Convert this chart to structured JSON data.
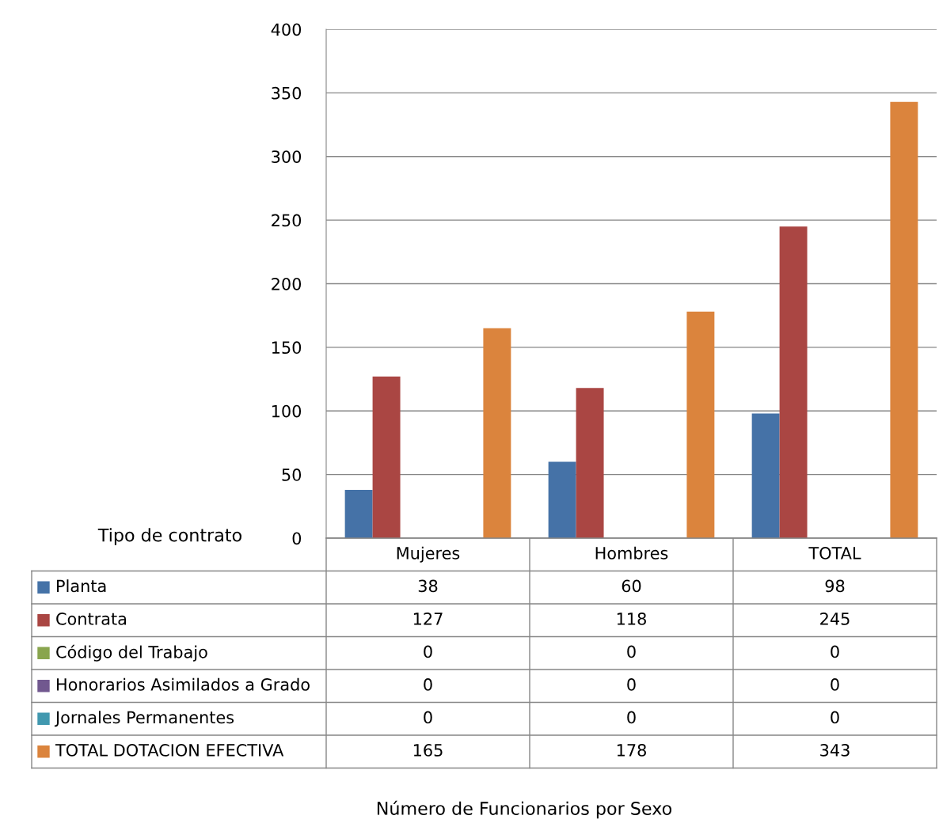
{
  "chart_data": {
    "type": "bar",
    "annotations": [
      "Número de Funcionarios por Sexo"
    ],
    "legend_title": "Tipo de contrato",
    "categories": [
      "Mujeres",
      "Hombres",
      "TOTAL"
    ],
    "series": [
      {
        "name": "Planta",
        "color": "#4572a7",
        "values": [
          38,
          60,
          98
        ]
      },
      {
        "name": "Contrata",
        "color": "#aa4643",
        "values": [
          127,
          118,
          245
        ]
      },
      {
        "name": "Código del Trabajo",
        "color": "#89a54e",
        "values": [
          0,
          0,
          0
        ]
      },
      {
        "name": "Honorarios Asimilados a Grado",
        "color": "#71588f",
        "values": [
          0,
          0,
          0
        ]
      },
      {
        "name": "Jornales Permanentes",
        "color": "#4198af",
        "values": [
          0,
          0,
          0
        ]
      },
      {
        "name": "TOTAL DOTACION EFECTIVA",
        "color": "#db843d",
        "values": [
          165,
          178,
          343
        ]
      }
    ],
    "ylim": [
      0,
      400
    ],
    "yticks": [
      0,
      50,
      100,
      150,
      200,
      250,
      300,
      350,
      400
    ],
    "grid": "y",
    "legend": "bottom",
    "data_labels": true
  }
}
